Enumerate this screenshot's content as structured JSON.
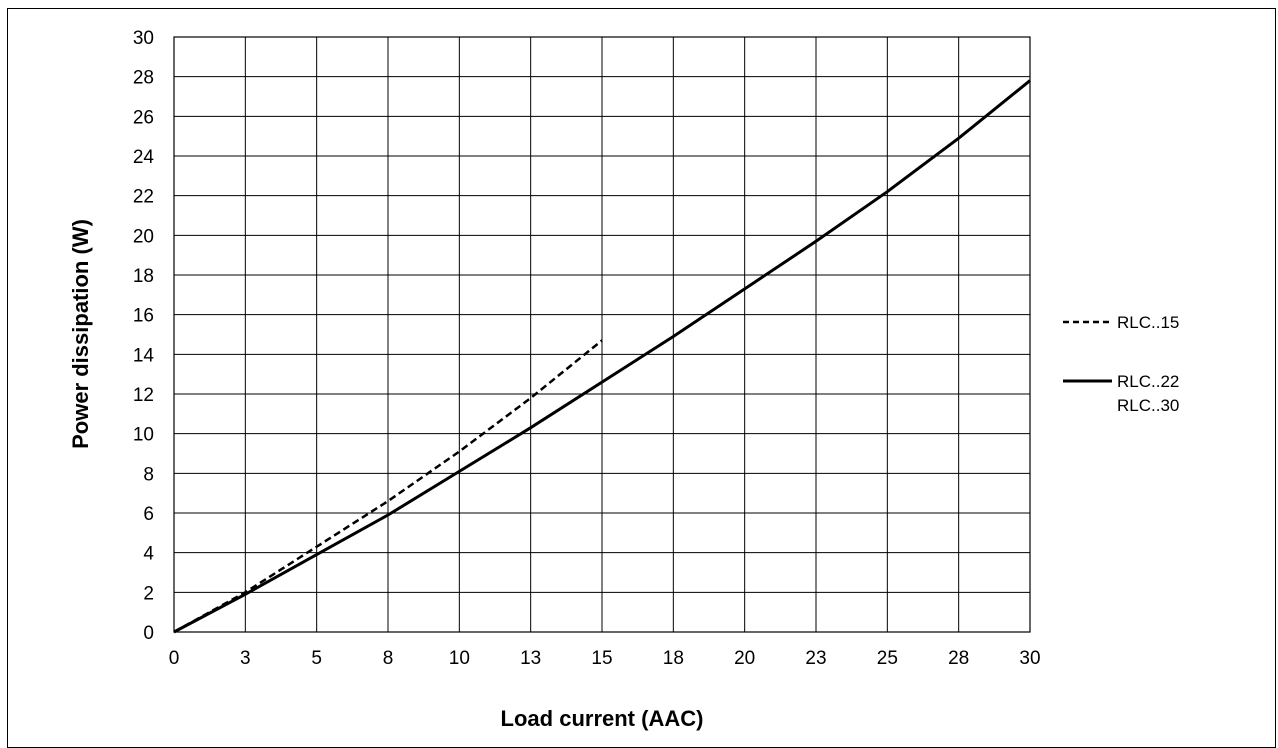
{
  "chart_data": {
    "type": "line",
    "xlabel": "Load current (AAC)",
    "ylabel": "Power dissipation (W)",
    "xlim": [
      0,
      30
    ],
    "ylim": [
      0,
      30
    ],
    "x_tick_labels": [
      "0",
      "3",
      "5",
      "8",
      "10",
      "13",
      "15",
      "18",
      "20",
      "23",
      "25",
      "28",
      "30"
    ],
    "y_ticks": [
      0,
      2,
      4,
      6,
      8,
      10,
      12,
      14,
      16,
      18,
      20,
      22,
      24,
      26,
      28,
      30
    ],
    "grid": true,
    "legend_position": "right",
    "series": [
      {
        "name": "RLC..15",
        "style": "dashed",
        "color": "#000000",
        "x": [
          0,
          2.5,
          5,
          7.5,
          10,
          12.5,
          15
        ],
        "y": [
          0,
          2.0,
          4.3,
          6.6,
          9.1,
          11.8,
          14.7
        ]
      },
      {
        "name": "RLC..22 RLC..30",
        "labels": [
          "RLC..22",
          "RLC..30"
        ],
        "style": "solid",
        "color": "#000000",
        "x": [
          0,
          2.5,
          5,
          7.5,
          10,
          12.5,
          15,
          17.5,
          20,
          22.5,
          25,
          27.5,
          30
        ],
        "y": [
          0,
          1.9,
          3.9,
          5.9,
          8.1,
          10.3,
          12.6,
          14.9,
          17.3,
          19.7,
          22.2,
          24.9,
          27.8
        ]
      }
    ]
  }
}
